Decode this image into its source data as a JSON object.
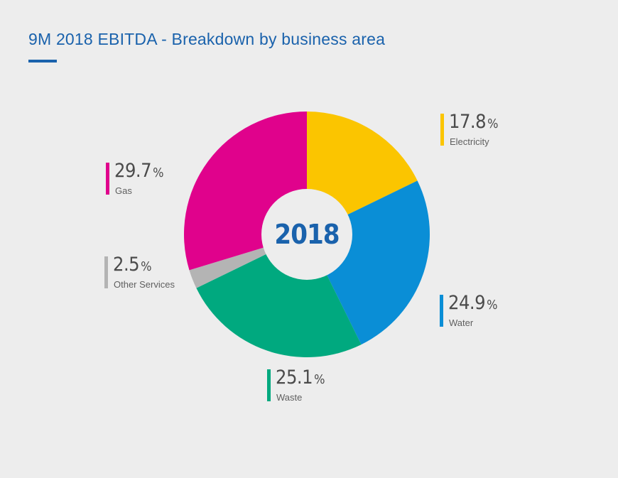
{
  "title": "9M 2018 EBITDA - Breakdown by business area",
  "center_label": "2018",
  "percent_sign": "%",
  "chart_data": {
    "type": "pie",
    "title": "9M 2018 EBITDA - Breakdown by business area",
    "center_text": "2018",
    "unit": "%",
    "categories": [
      "Electricity",
      "Water",
      "Waste",
      "Other Services",
      "Gas"
    ],
    "values": [
      17.8,
      24.9,
      25.1,
      2.5,
      29.7
    ],
    "colors": [
      "#fbc500",
      "#0a8ed6",
      "#00a97f",
      "#b4b4b4",
      "#e0028c"
    ],
    "legend": "callouts"
  },
  "callouts": [
    {
      "value": "17.8",
      "label": "Electricity",
      "color": "#fbc500"
    },
    {
      "value": "24.9",
      "label": "Water",
      "color": "#0a8ed6"
    },
    {
      "value": "25.1",
      "label": "Waste",
      "color": "#00a97f"
    },
    {
      "value": "2.5",
      "label": "Other Services",
      "color": "#b4b4b4"
    },
    {
      "value": "29.7",
      "label": "Gas",
      "color": "#e0028c"
    }
  ]
}
